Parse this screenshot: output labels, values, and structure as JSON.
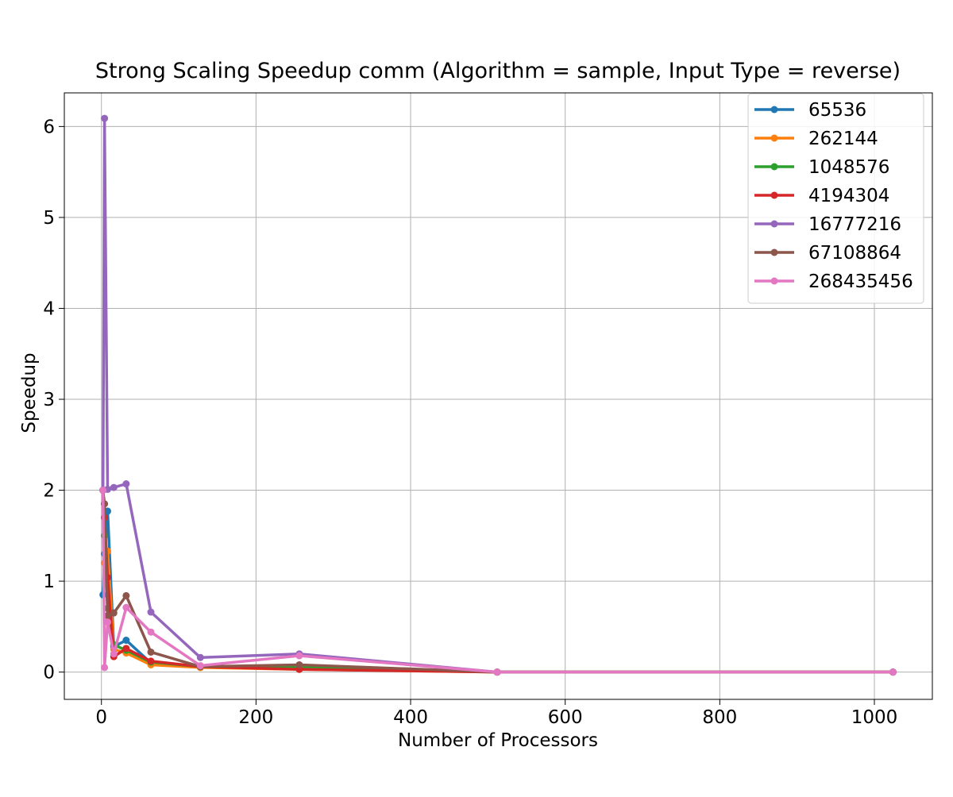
{
  "chart_data": {
    "type": "line",
    "title": "Strong Scaling Speedup comm (Algorithm = sample, Input Type = reverse)",
    "xlabel": "Number of Processors",
    "ylabel": "Speedup",
    "xlim": [
      -48,
      1075
    ],
    "ylim": [
      -0.3,
      6.37
    ],
    "xticks": [
      0,
      200,
      400,
      600,
      800,
      1000
    ],
    "yticks": [
      0,
      1,
      2,
      3,
      4,
      5,
      6
    ],
    "grid": true,
    "legend_position": "top-right",
    "x": [
      2,
      4,
      8,
      16,
      32,
      64,
      128,
      256,
      512,
      1024
    ],
    "series": [
      {
        "name": "65536",
        "color": "#1f77b4",
        "values": [
          0.85,
          1.3,
          1.77,
          0.28,
          0.35,
          0.1,
          0.06,
          0.05,
          0.0,
          0.0
        ]
      },
      {
        "name": "262144",
        "color": "#ff7f0e",
        "values": [
          2.0,
          1.2,
          1.33,
          0.25,
          0.21,
          0.08,
          0.05,
          0.03,
          0.0,
          0.0
        ]
      },
      {
        "name": "1048576",
        "color": "#2ca02c",
        "values": [
          2.0,
          1.5,
          0.7,
          0.3,
          0.24,
          0.11,
          0.06,
          0.05,
          0.0,
          0.0
        ]
      },
      {
        "name": "4194304",
        "color": "#d62728",
        "values": [
          2.0,
          1.7,
          1.04,
          0.17,
          0.26,
          0.12,
          0.06,
          0.03,
          0.0,
          0.0
        ]
      },
      {
        "name": "16777216",
        "color": "#9467bd",
        "values": [
          2.0,
          6.09,
          2.01,
          2.03,
          2.07,
          0.66,
          0.16,
          0.2,
          0.0,
          0.0
        ]
      },
      {
        "name": "67108864",
        "color": "#8c564b",
        "values": [
          2.0,
          1.85,
          0.62,
          0.65,
          0.84,
          0.22,
          0.06,
          0.08,
          0.0,
          0.0
        ]
      },
      {
        "name": "268435456",
        "color": "#e377c2",
        "values": [
          2.0,
          0.05,
          0.55,
          0.2,
          0.71,
          0.44,
          0.07,
          0.18,
          0.0,
          0.0
        ]
      }
    ]
  }
}
